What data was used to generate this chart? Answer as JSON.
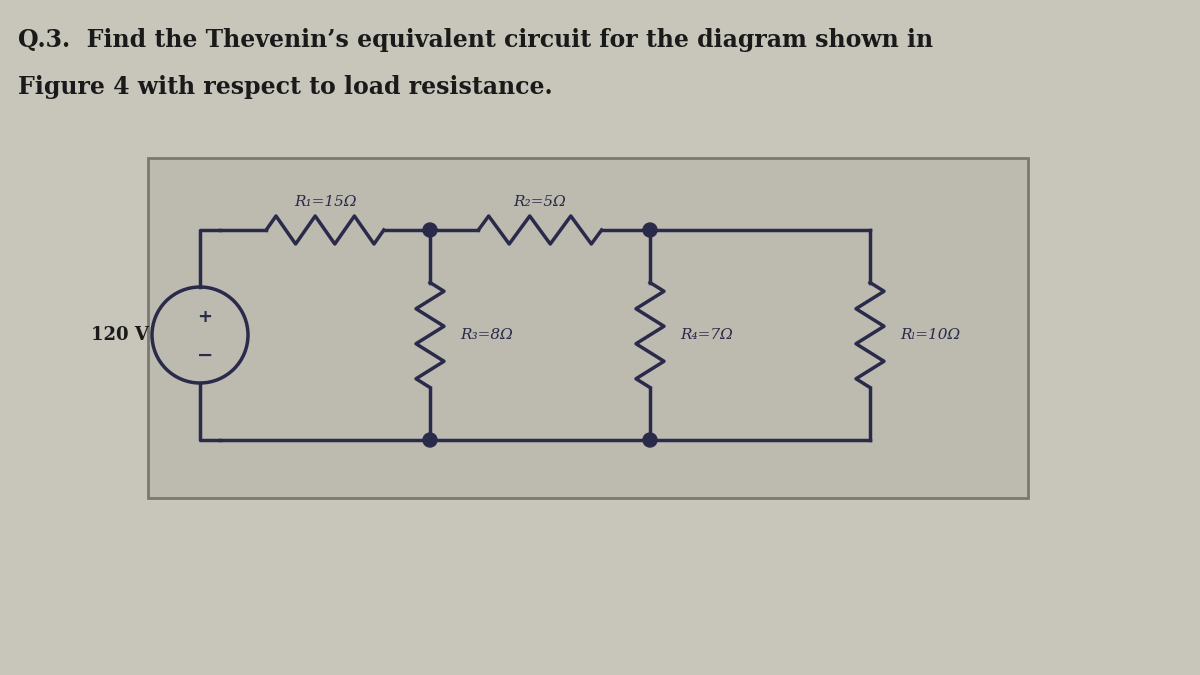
{
  "title_line1": "Q.3.  Find the Thevenin’s equivalent circuit for the diagram shown in",
  "title_line2": "Figure 4 with respect to load resistance.",
  "bg_color": "#c8c5bb",
  "circuit_bg": "#bdbab0",
  "circuit_border": "#7a7870",
  "text_color": "#1a1a1a",
  "wire_color": "#2a2a4a",
  "voltage_label": "120 V",
  "r1_label": "R₁=15Ω",
  "r2_label": "R₂=5Ω",
  "r3_label": "R₃=8Ω",
  "r4_label": "R₄=7Ω",
  "rl_label": "Rₗ=10Ω",
  "title_fontsize": 17,
  "label_fontsize": 11
}
